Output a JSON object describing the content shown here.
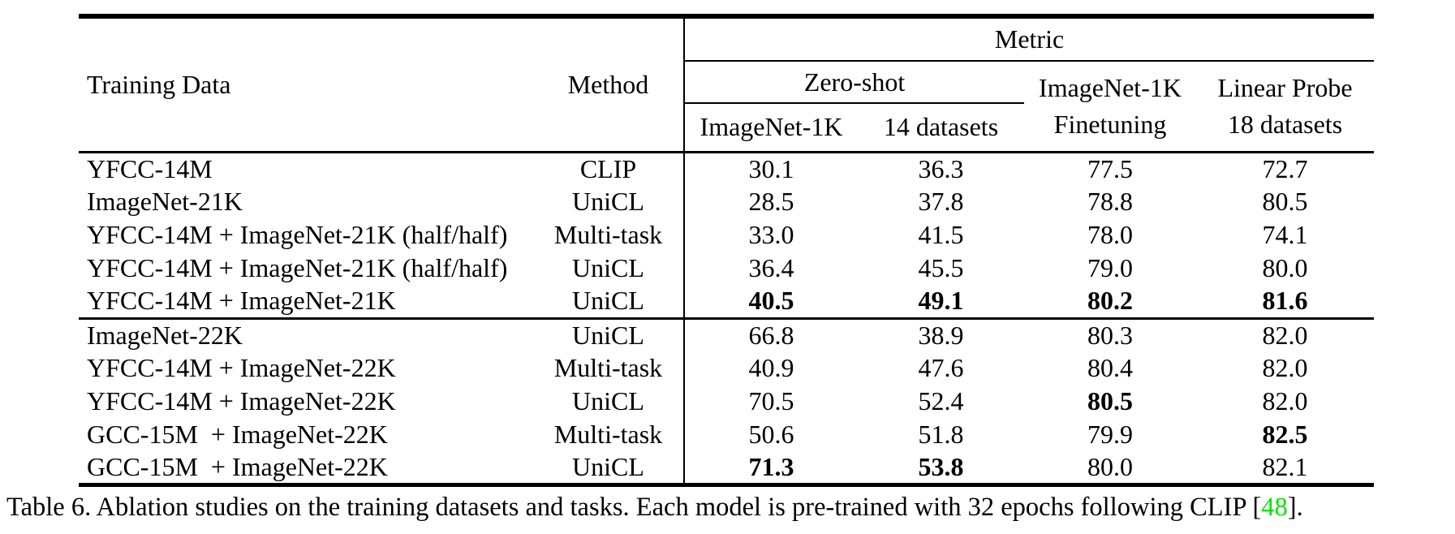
{
  "page": {
    "background_color": "#ffffff",
    "text_color": "#000000",
    "citation_color": "#00e400"
  },
  "table": {
    "header": {
      "col_training_data": "Training Data",
      "col_method": "Method",
      "group_metric": "Metric",
      "group_zero_shot": "Zero-shot",
      "sub_zero_shot_1": "ImageNet-1K",
      "sub_zero_shot_2": "14 datasets",
      "col_finetune_line1": "ImageNet-1K",
      "col_finetune_line2": "Finetuning",
      "col_linear_line1": "Linear Probe",
      "col_linear_line2": "18 datasets"
    },
    "section1": {
      "rows": [
        {
          "training_data": "YFCC-14M",
          "method": "CLIP",
          "v1": "30.1",
          "v2": "36.3",
          "v3": "77.5",
          "v4": "72.7"
        },
        {
          "training_data": "ImageNet-21K",
          "method": "UniCL",
          "v1": "28.5",
          "v2": "37.8",
          "v3": "78.8",
          "v4": "80.5"
        },
        {
          "training_data": "YFCC-14M + ImageNet-21K (half/half)",
          "method": "Multi-task",
          "v1": "33.0",
          "v2": "41.5",
          "v3": "78.0",
          "v4": "74.1"
        },
        {
          "training_data": "YFCC-14M + ImageNet-21K (half/half)",
          "method": "UniCL",
          "v1": "36.4",
          "v2": "45.5",
          "v3": "79.0",
          "v4": "80.0"
        },
        {
          "training_data": "YFCC-14M + ImageNet-21K",
          "method": "UniCL",
          "v1": "40.5",
          "v2": "49.1",
          "v3": "80.2",
          "v4": "81.6"
        }
      ]
    },
    "section2": {
      "rows": [
        {
          "training_data": "ImageNet-22K",
          "method": "UniCL",
          "v1": "66.8",
          "v2": "38.9",
          "v3": "80.3",
          "v4": "82.0"
        },
        {
          "training_data": "YFCC-14M + ImageNet-22K",
          "method": "Multi-task",
          "v1": "40.9",
          "v2": "47.6",
          "v3": "80.4",
          "v4": "82.0"
        },
        {
          "training_data": "YFCC-14M + ImageNet-22K",
          "method": "UniCL",
          "v1": "70.5",
          "v2": "52.4",
          "v3": "80.5",
          "v4": "82.0"
        },
        {
          "training_data": "GCC-15M  + ImageNet-22K",
          "method": "Multi-task",
          "v1": "50.6",
          "v2": "51.8",
          "v3": "79.9",
          "v4": "82.5"
        },
        {
          "training_data": "GCC-15M  + ImageNet-22K",
          "method": "UniCL",
          "v1": "71.3",
          "v2": "53.8",
          "v3": "80.0",
          "v4": "82.1"
        }
      ]
    }
  },
  "caption": {
    "prefix": "Table 6. Ablation studies on the training datasets and tasks. Each model is pre-trained with 32 epochs following CLIP [",
    "cite": "48",
    "suffix": "]."
  }
}
